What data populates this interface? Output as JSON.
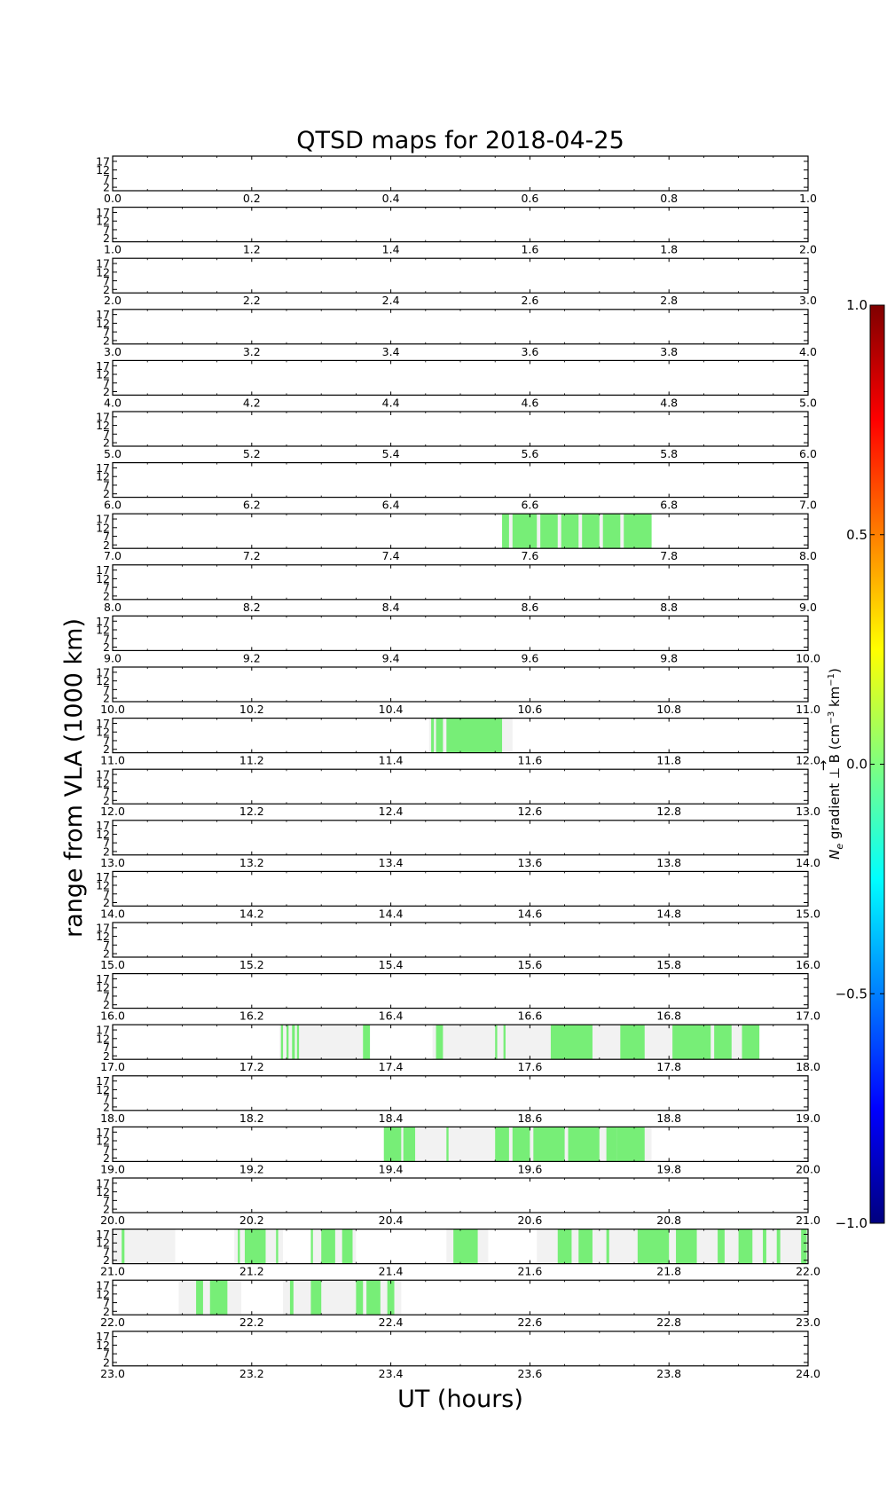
{
  "chart_data": {
    "type": "heatmap",
    "title": "QTSD maps for 2018-04-25",
    "xlabel": "UT (hours)",
    "ylabel": "range from VLA (1000 km)",
    "yticks": [
      "17",
      "12",
      "7",
      "2"
    ],
    "ylim": [
      0,
      20
    ],
    "colorbar": {
      "label_main": "N",
      "label_sub": "e",
      "label_rest": " gradient ⊥ B (cm",
      "label_exp1": "−3",
      "label_mid": " km",
      "label_exp2": "−1",
      "label_end": ")",
      "label_vec": "→",
      "range": [
        -1.0,
        1.0
      ],
      "ticks": [
        "1.0",
        "0.5",
        "0.0",
        "−0.5",
        "−1.0"
      ],
      "tick_values": [
        1.0,
        0.5,
        0.0,
        -0.5,
        -1.0
      ],
      "colors": [
        "#00007f",
        "#0000ff",
        "#007fff",
        "#00ffff",
        "#7fff7f",
        "#ffff00",
        "#ff7f00",
        "#ff0000",
        "#7f0000"
      ]
    },
    "colors": {
      "signal": "#77ee77",
      "coverage": "#f2f2f2"
    },
    "panels": [
      {
        "hour": 0,
        "xticks": [
          "0.0",
          "0.2",
          "0.4",
          "0.6",
          "0.8",
          "1.0"
        ],
        "coverage": [],
        "signal": []
      },
      {
        "hour": 1,
        "xticks": [
          "1.0",
          "1.2",
          "1.4",
          "1.6",
          "1.8",
          "2.0"
        ],
        "coverage": [],
        "signal": []
      },
      {
        "hour": 2,
        "xticks": [
          "2.0",
          "2.2",
          "2.4",
          "2.6",
          "2.8",
          "3.0"
        ],
        "coverage": [],
        "signal": []
      },
      {
        "hour": 3,
        "xticks": [
          "3.0",
          "3.2",
          "3.4",
          "3.6",
          "3.8",
          "4.0"
        ],
        "coverage": [],
        "signal": []
      },
      {
        "hour": 4,
        "xticks": [
          "4.0",
          "4.2",
          "4.4",
          "4.6",
          "4.8",
          "5.0"
        ],
        "coverage": [],
        "signal": []
      },
      {
        "hour": 5,
        "xticks": [
          "5.0",
          "5.2",
          "5.4",
          "5.6",
          "5.8",
          "6.0"
        ],
        "coverage": [],
        "signal": []
      },
      {
        "hour": 6,
        "xticks": [
          "6.0",
          "6.2",
          "6.4",
          "6.6",
          "6.8",
          "7.0"
        ],
        "coverage": [],
        "signal": []
      },
      {
        "hour": 7,
        "xticks": [
          "7.0",
          "7.2",
          "7.4",
          "7.6",
          "7.8",
          "8.0"
        ],
        "coverage": [
          [
            7.56,
            7.775
          ]
        ],
        "signal": [
          [
            7.56,
            7.57
          ],
          [
            7.575,
            7.61
          ],
          [
            7.615,
            7.64
          ],
          [
            7.645,
            7.67
          ],
          [
            7.675,
            7.7
          ],
          [
            7.705,
            7.73
          ],
          [
            7.735,
            7.775
          ]
        ]
      },
      {
        "hour": 8,
        "xticks": [
          "8.0",
          "8.2",
          "8.4",
          "8.6",
          "8.8",
          "9.0"
        ],
        "coverage": [],
        "signal": []
      },
      {
        "hour": 9,
        "xticks": [
          "9.0",
          "9.2",
          "9.4",
          "9.6",
          "9.8",
          "10.0"
        ],
        "coverage": [],
        "signal": []
      },
      {
        "hour": 10,
        "xticks": [
          "10.0",
          "10.2",
          "10.4",
          "10.6",
          "10.8",
          "11.0"
        ],
        "coverage": [],
        "signal": []
      },
      {
        "hour": 11,
        "xticks": [
          "11.0",
          "11.2",
          "11.4",
          "11.6",
          "11.8",
          "12.0"
        ],
        "coverage": [
          [
            11.455,
            11.575
          ]
        ],
        "signal": [
          [
            11.458,
            11.462
          ],
          [
            11.465,
            11.475
          ],
          [
            11.48,
            11.56
          ]
        ]
      },
      {
        "hour": 12,
        "xticks": [
          "12.0",
          "12.2",
          "12.4",
          "12.6",
          "12.8",
          "13.0"
        ],
        "coverage": [],
        "signal": []
      },
      {
        "hour": 13,
        "xticks": [
          "13.0",
          "13.2",
          "13.4",
          "13.6",
          "13.8",
          "14.0"
        ],
        "coverage": [],
        "signal": []
      },
      {
        "hour": 14,
        "xticks": [
          "14.0",
          "14.2",
          "14.4",
          "14.6",
          "14.8",
          "15.0"
        ],
        "coverage": [],
        "signal": []
      },
      {
        "hour": 15,
        "xticks": [
          "15.0",
          "15.2",
          "15.4",
          "15.6",
          "15.8",
          "16.0"
        ],
        "coverage": [],
        "signal": []
      },
      {
        "hour": 16,
        "xticks": [
          "16.0",
          "16.2",
          "16.4",
          "16.6",
          "16.8",
          "17.0"
        ],
        "coverage": [],
        "signal": []
      },
      {
        "hour": 17,
        "xticks": [
          "17.0",
          "17.2",
          "17.4",
          "17.6",
          "17.8",
          "18.0"
        ],
        "coverage": [
          [
            17.24,
            17.37
          ],
          [
            17.46,
            17.93
          ]
        ],
        "signal": [
          [
            17.242,
            17.245
          ],
          [
            17.25,
            17.253
          ],
          [
            17.258,
            17.262
          ],
          [
            17.265,
            17.268
          ],
          [
            17.36,
            17.37
          ],
          [
            17.465,
            17.475
          ],
          [
            17.55,
            17.553
          ],
          [
            17.562,
            17.565
          ],
          [
            17.63,
            17.69
          ],
          [
            17.73,
            17.765
          ],
          [
            17.805,
            17.86
          ],
          [
            17.865,
            17.89
          ],
          [
            17.905,
            17.93
          ]
        ]
      },
      {
        "hour": 18,
        "xticks": [
          "18.0",
          "18.2",
          "18.4",
          "18.6",
          "18.8",
          "19.0"
        ],
        "coverage": [],
        "signal": []
      },
      {
        "hour": 19,
        "xticks": [
          "19.0",
          "19.2",
          "19.4",
          "19.6",
          "19.8",
          "20.0"
        ],
        "coverage": [
          [
            19.39,
            19.775
          ]
        ],
        "signal": [
          [
            19.39,
            19.415
          ],
          [
            19.418,
            19.435
          ],
          [
            19.48,
            19.483
          ],
          [
            19.55,
            19.57
          ],
          [
            19.575,
            19.6
          ],
          [
            19.605,
            19.65
          ],
          [
            19.655,
            19.7
          ],
          [
            19.71,
            19.725
          ],
          [
            19.725,
            19.765
          ]
        ]
      },
      {
        "hour": 20,
        "xticks": [
          "20.0",
          "20.2",
          "20.4",
          "20.6",
          "20.8",
          "21.0"
        ],
        "coverage": [],
        "signal": []
      },
      {
        "hour": 21,
        "xticks": [
          "21.0",
          "21.2",
          "21.4",
          "21.6",
          "21.8",
          "22.0"
        ],
        "coverage": [
          [
            21.0,
            21.09
          ],
          [
            21.175,
            21.245
          ],
          [
            21.285,
            21.35
          ],
          [
            21.48,
            21.54
          ],
          [
            21.61,
            22.0
          ]
        ],
        "signal": [
          [
            21.013,
            21.017
          ],
          [
            21.18,
            21.183
          ],
          [
            21.19,
            21.22
          ],
          [
            21.235,
            21.238
          ],
          [
            21.285,
            21.288
          ],
          [
            21.3,
            21.32
          ],
          [
            21.33,
            21.345
          ],
          [
            21.49,
            21.525
          ],
          [
            21.64,
            21.66
          ],
          [
            21.67,
            21.69
          ],
          [
            21.71,
            21.714
          ],
          [
            21.755,
            21.759
          ],
          [
            21.755,
            21.8
          ],
          [
            21.81,
            21.84
          ],
          [
            21.87,
            21.88
          ],
          [
            21.9,
            21.92
          ],
          [
            21.935,
            21.94
          ],
          [
            21.955,
            21.96
          ],
          [
            21.99,
            21.998
          ]
        ]
      },
      {
        "hour": 22,
        "xticks": [
          "22.0",
          "22.2",
          "22.4",
          "22.6",
          "22.8",
          "23.0"
        ],
        "coverage": [
          [
            22.095,
            22.185
          ],
          [
            22.245,
            22.415
          ]
        ],
        "signal": [
          [
            22.12,
            22.13
          ],
          [
            22.14,
            22.165
          ],
          [
            22.255,
            22.26
          ],
          [
            22.285,
            22.3
          ],
          [
            22.35,
            22.36
          ],
          [
            22.365,
            22.385
          ],
          [
            22.395,
            22.405
          ]
        ]
      },
      {
        "hour": 23,
        "xticks": [
          "23.0",
          "23.2",
          "23.4",
          "23.6",
          "23.8",
          "24.0"
        ],
        "coverage": [],
        "signal": []
      }
    ]
  }
}
